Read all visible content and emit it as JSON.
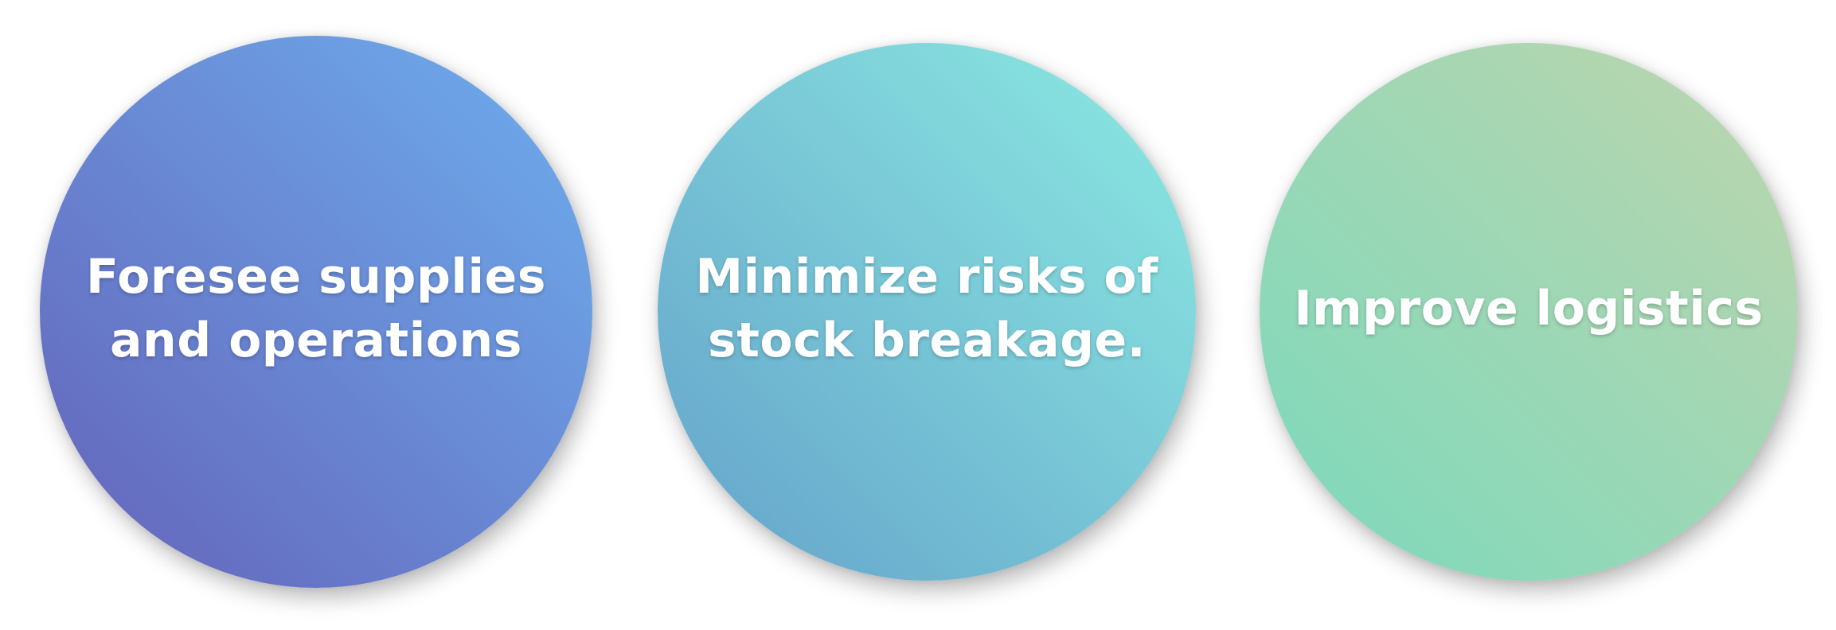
{
  "items": [
    {
      "label": "Foresee supplies\nand operations",
      "color_from": "#6462b9",
      "color_to": "#6eafee"
    },
    {
      "label": "Minimize risks of\nstock breakage.",
      "color_from": "#64a1ca",
      "color_to": "#8cebe2"
    },
    {
      "label": "Improve logistics",
      "color_from": "#7bd9bd",
      "color_to": "#bed5ad"
    }
  ]
}
